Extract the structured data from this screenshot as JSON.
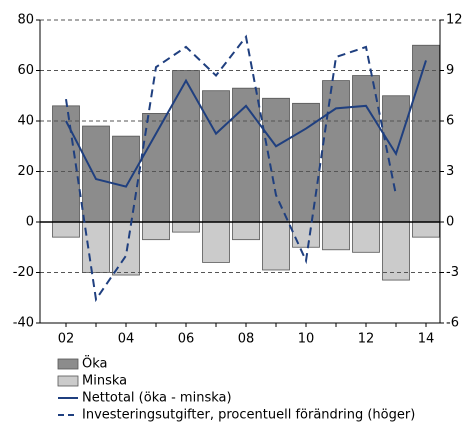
{
  "chart_data": {
    "type": "bar",
    "categories": [
      "02",
      null,
      "04",
      null,
      "06",
      null,
      "08",
      null,
      "10",
      null,
      "12",
      null,
      "14"
    ],
    "series": [
      {
        "name": "Öka",
        "type": "bar",
        "color": "#8c8c8c",
        "values": [
          46,
          38,
          34,
          43,
          60,
          52,
          53,
          49,
          47,
          56,
          58,
          50,
          70
        ]
      },
      {
        "name": "Minska",
        "type": "bar",
        "color": "#cbcbcb",
        "values": [
          -6,
          -20,
          -21,
          -7,
          -4,
          -16,
          -7,
          -19,
          -10,
          -11,
          -12,
          -23,
          -6
        ]
      },
      {
        "name": "Nettotal (öka - minska)",
        "type": "line",
        "color": "#1f3f7f",
        "linestyle": "solid",
        "values": [
          40,
          17,
          14,
          35,
          56,
          35,
          46,
          30,
          37,
          45,
          46,
          27,
          64
        ]
      },
      {
        "name": "Investeringsutgifter, procentuell förändring (höger)",
        "type": "line",
        "color": "#1f3f7f",
        "linestyle": "dashed",
        "axis": "y2",
        "values": [
          7.3,
          -4.6,
          -2.0,
          9.2,
          10.4,
          8.7,
          11.0,
          1.6,
          -2.3,
          9.8,
          10.4,
          1.6,
          null
        ]
      }
    ],
    "ylim": [
      -40,
      80
    ],
    "yticks": [
      -40,
      -20,
      0,
      20,
      40,
      60,
      80
    ],
    "y2lim": [
      -6,
      12
    ],
    "y2ticks": [
      -6,
      -3,
      0,
      3,
      6,
      9,
      12
    ],
    "grid": true
  }
}
